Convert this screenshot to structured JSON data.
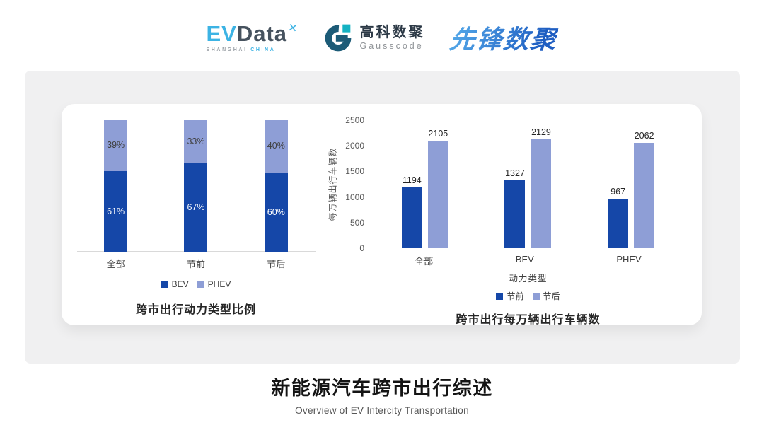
{
  "header": {
    "evdata": {
      "ev": "EV",
      "data": "Data",
      "mark": "✕",
      "tagline_left": "SHANGHAI",
      "tagline_right": "CHINA",
      "brand_blue": "#3cb3e4",
      "brand_dark": "#46525e"
    },
    "gausscode": {
      "cn": "高科数聚",
      "en": "Gausscode",
      "ring_color": "#1c5b77",
      "accent_color": "#14b2c2"
    },
    "pioneer": {
      "text": "先锋数聚",
      "color_start": "#53a7e8",
      "color_end": "#1f5ec2"
    }
  },
  "chart_data": [
    {
      "type": "bar",
      "subtype": "stacked-100pct",
      "title": "跨市出行动力类型比例",
      "categories": [
        "全部",
        "节前",
        "节后"
      ],
      "series": [
        {
          "name": "BEV",
          "color": "#1547a8",
          "values": [
            61,
            67,
            60
          ],
          "unit": "%"
        },
        {
          "name": "PHEV",
          "color": "#8e9ed6",
          "values": [
            39,
            33,
            40
          ],
          "unit": "%"
        }
      ],
      "ylim": [
        0,
        100
      ],
      "legend_position": "bottom",
      "value_labels": true,
      "grid": false
    },
    {
      "type": "bar",
      "subtype": "grouped",
      "title": "跨市出行每万辆出行车辆数",
      "categories": [
        "全部",
        "BEV",
        "PHEV"
      ],
      "xlabel": "动力类型",
      "ylabel": "每万辆出行车辆数",
      "series": [
        {
          "name": "节前",
          "color": "#1547a8",
          "values": [
            1194,
            1327,
            967
          ]
        },
        {
          "name": "节后",
          "color": "#8e9ed6",
          "values": [
            2105,
            2129,
            2062
          ]
        }
      ],
      "ylim": [
        0,
        2500
      ],
      "yticks": [
        0,
        500,
        1000,
        1500,
        2000,
        2500
      ],
      "legend_position": "bottom",
      "value_labels": true,
      "grid": false
    }
  ],
  "footer": {
    "title": "新能源汽车跨市出行综述",
    "subtitle": "Overview of EV Intercity Transportation"
  }
}
